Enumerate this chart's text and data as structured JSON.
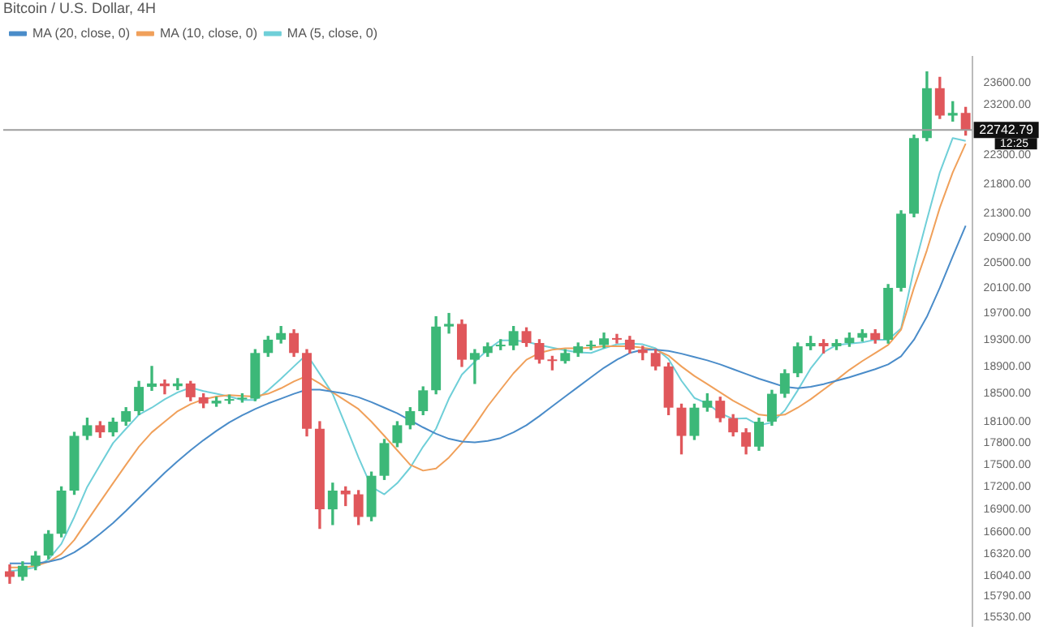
{
  "chart_data": {
    "type": "candlestick",
    "title": "Bitcoin / U.S. Dollar, 4H",
    "legend": "top left",
    "tick_labels": "y",
    "log": "y",
    "categories": [
      null,
      null,
      null,
      null,
      null,
      null,
      null,
      null,
      null,
      null,
      null,
      null,
      null,
      null,
      null,
      null,
      null,
      null,
      null,
      null,
      null,
      null,
      null,
      null,
      null,
      null,
      null,
      null,
      null,
      null,
      null,
      null,
      null,
      null,
      null,
      null,
      null,
      null,
      null,
      null,
      null,
      null,
      null,
      null,
      null,
      null,
      null,
      null,
      null,
      null,
      null,
      null,
      null,
      null,
      null,
      null,
      null,
      null,
      null,
      null,
      null,
      null,
      null,
      null,
      null,
      null,
      null,
      null,
      null,
      null,
      null,
      null,
      null,
      null,
      null
    ],
    "ohlc": [
      [
        16100,
        16180,
        15950,
        16030
      ],
      [
        16030,
        16220,
        15990,
        16170
      ],
      [
        16170,
        16350,
        16120,
        16300
      ],
      [
        16300,
        16620,
        16260,
        16580
      ],
      [
        16580,
        17200,
        16540,
        17150
      ],
      [
        17150,
        17950,
        17100,
        17900
      ],
      [
        17900,
        18150,
        17850,
        18050
      ],
      [
        18050,
        18100,
        17880,
        17950
      ],
      [
        17950,
        18150,
        17900,
        18100
      ],
      [
        18100,
        18300,
        18050,
        18250
      ],
      [
        18250,
        18680,
        18200,
        18600
      ],
      [
        18600,
        18900,
        18550,
        18650
      ],
      [
        18650,
        18700,
        18500,
        18610
      ],
      [
        18610,
        18720,
        18560,
        18650
      ],
      [
        18650,
        18680,
        18400,
        18450
      ],
      [
        18450,
        18500,
        18300,
        18360
      ],
      [
        18360,
        18450,
        18320,
        18400
      ],
      [
        18400,
        18480,
        18360,
        18420
      ],
      [
        18420,
        18500,
        18380,
        18430
      ],
      [
        18430,
        19150,
        18400,
        19100
      ],
      [
        19100,
        19350,
        19050,
        19300
      ],
      [
        19300,
        19500,
        19250,
        19400
      ],
      [
        19400,
        19450,
        19050,
        19100
      ],
      [
        19100,
        19150,
        17900,
        18000
      ],
      [
        18000,
        18100,
        16650,
        16900
      ],
      [
        16900,
        17250,
        16700,
        17150
      ],
      [
        17150,
        17200,
        16950,
        17100
      ],
      [
        17100,
        17150,
        16700,
        16800
      ],
      [
        16800,
        17400,
        16750,
        17350
      ],
      [
        17350,
        17850,
        17300,
        17800
      ],
      [
        17800,
        18100,
        17750,
        18050
      ],
      [
        18050,
        18300,
        18000,
        18250
      ],
      [
        18250,
        18600,
        18200,
        18550
      ],
      [
        18550,
        19650,
        18500,
        19500
      ],
      [
        19500,
        19700,
        19400,
        19540
      ],
      [
        19540,
        19600,
        18900,
        19000
      ],
      [
        19000,
        19150,
        18650,
        19100
      ],
      [
        19100,
        19250,
        19050,
        19200
      ],
      [
        19200,
        19300,
        19150,
        19210
      ],
      [
        19210,
        19500,
        19150,
        19430
      ],
      [
        19430,
        19480,
        19200,
        19250
      ],
      [
        19250,
        19300,
        18950,
        19000
      ],
      [
        19000,
        19050,
        18850,
        18980
      ],
      [
        18980,
        19150,
        18950,
        19100
      ],
      [
        19100,
        19250,
        19050,
        19200
      ],
      [
        19200,
        19280,
        19150,
        19220
      ],
      [
        19220,
        19400,
        19180,
        19320
      ],
      [
        19320,
        19380,
        19250,
        19300
      ],
      [
        19300,
        19350,
        19100,
        19150
      ],
      [
        19150,
        19200,
        19000,
        19100
      ],
      [
        19100,
        19150,
        18850,
        18900
      ],
      [
        18900,
        18950,
        18200,
        18300
      ],
      [
        18300,
        18350,
        17650,
        17900
      ],
      [
        17900,
        18350,
        17850,
        18300
      ],
      [
        18300,
        18500,
        18250,
        18400
      ],
      [
        18400,
        18450,
        18100,
        18150
      ],
      [
        18150,
        18200,
        17900,
        17950
      ],
      [
        17950,
        18000,
        17650,
        17750
      ],
      [
        17750,
        18150,
        17700,
        18100
      ],
      [
        18100,
        18550,
        18050,
        18500
      ],
      [
        18500,
        18850,
        18450,
        18800
      ],
      [
        18800,
        19250,
        18750,
        19200
      ],
      [
        19200,
        19350,
        19150,
        19250
      ],
      [
        19250,
        19300,
        19100,
        19200
      ],
      [
        19200,
        19300,
        19150,
        19250
      ],
      [
        19250,
        19400,
        19200,
        19330
      ],
      [
        19330,
        19450,
        19280,
        19400
      ],
      [
        19400,
        19450,
        19250,
        19300
      ],
      [
        19300,
        20150,
        19250,
        20100
      ],
      [
        20100,
        21350,
        20050,
        21300
      ],
      [
        21300,
        22650,
        21250,
        22600
      ],
      [
        22600,
        23800,
        22550,
        23500
      ],
      [
        23500,
        23700,
        22950,
        23000
      ],
      [
        23000,
        23250,
        22900,
        23050
      ],
      [
        23050,
        23150,
        22650,
        22743
      ]
    ],
    "series": [
      {
        "type": "line",
        "name": "MA (20, close, 0)",
        "color": "#4a8cc9",
        "values": [
          16200,
          16200,
          16200,
          16220,
          16260,
          16340,
          16450,
          16580,
          16720,
          16880,
          17050,
          17220,
          17390,
          17550,
          17700,
          17840,
          17970,
          18090,
          18190,
          18280,
          18360,
          18430,
          18500,
          18560,
          18560,
          18530,
          18500,
          18450,
          18380,
          18300,
          18220,
          18120,
          18020,
          17930,
          17860,
          17820,
          17810,
          17830,
          17870,
          17950,
          18050,
          18180,
          18320,
          18460,
          18600,
          18740,
          18880,
          19000,
          19100,
          19150,
          19150,
          19130,
          19090,
          19040,
          18990,
          18930,
          18860,
          18790,
          18720,
          18660,
          18600,
          18580,
          18600,
          18640,
          18690,
          18740,
          18800,
          18860,
          18930,
          19050,
          19300,
          19650,
          20100,
          20600,
          21100
        ]
      },
      {
        "type": "line",
        "name": "MA (10, close, 0)",
        "color": "#f0a05a",
        "values": [
          16150,
          16150,
          16170,
          16220,
          16320,
          16500,
          16750,
          17000,
          17250,
          17500,
          17750,
          17950,
          18100,
          18250,
          18350,
          18420,
          18460,
          18480,
          18470,
          18460,
          18500,
          18580,
          18680,
          18760,
          18650,
          18520,
          18400,
          18280,
          18100,
          17900,
          17700,
          17500,
          17420,
          17450,
          17600,
          17800,
          18050,
          18320,
          18560,
          18800,
          19000,
          19100,
          19150,
          19170,
          19170,
          19180,
          19200,
          19200,
          19200,
          19180,
          19150,
          19060,
          18900,
          18760,
          18640,
          18520,
          18400,
          18300,
          18200,
          18180,
          18200,
          18300,
          18420,
          18560,
          18700,
          18850,
          18980,
          19100,
          19220,
          19450,
          20100,
          20700,
          21400,
          22000,
          22500
        ]
      },
      {
        "type": "line",
        "name": "MA (5, close, 0)",
        "color": "#6fcfd8",
        "values": [
          16100,
          16120,
          16150,
          16250,
          16450,
          16800,
          17200,
          17500,
          17800,
          18000,
          18200,
          18300,
          18420,
          18520,
          18590,
          18540,
          18500,
          18460,
          18410,
          18410,
          18550,
          18720,
          18900,
          19080,
          18790,
          18500,
          18050,
          17600,
          17200,
          17100,
          17250,
          17460,
          17750,
          18000,
          18430,
          18780,
          18970,
          19150,
          19290,
          19290,
          19270,
          19220,
          19180,
          19140,
          19110,
          19100,
          19170,
          19230,
          19240,
          19230,
          19170,
          19010,
          18690,
          18440,
          18360,
          18220,
          18140,
          18150,
          18050,
          18090,
          18260,
          18550,
          18870,
          19110,
          19220,
          19240,
          19260,
          19300,
          19300,
          19470,
          20400,
          21200,
          22000,
          22600,
          22550
        ]
      }
    ],
    "ylim": [
      15425,
      24090
    ],
    "yticks": [
      {
        "value": 15530,
        "label": "15530.00"
      },
      {
        "value": 15790,
        "label": "15790.00"
      },
      {
        "value": 16040,
        "label": "16040.00"
      },
      {
        "value": 16320,
        "label": "16320.00"
      },
      {
        "value": 16600,
        "label": "16600.00"
      },
      {
        "value": 16900,
        "label": "16900.00"
      },
      {
        "value": 17200,
        "label": "17200.00"
      },
      {
        "value": 17500,
        "label": "17500.00"
      },
      {
        "value": 17800,
        "label": "17800.00"
      },
      {
        "value": 18100,
        "label": "18100.00"
      },
      {
        "value": 18500,
        "label": "18500.00"
      },
      {
        "value": 18900,
        "label": "18900.00"
      },
      {
        "value": 19300,
        "label": "19300.00"
      },
      {
        "value": 19700,
        "label": "19700.00"
      },
      {
        "value": 20100,
        "label": "20100.00"
      },
      {
        "value": 20500,
        "label": "20500.00"
      },
      {
        "value": 20900,
        "label": "20900.00"
      },
      {
        "value": 21300,
        "label": "21300.00"
      },
      {
        "value": 21800,
        "label": "21800.00"
      },
      {
        "value": 22300,
        "label": "22300.00"
      },
      {
        "value": 23200,
        "label": "23200.00"
      },
      {
        "value": 23600,
        "label": "23600.00"
      }
    ],
    "ref_lines": [
      {
        "axis": "y",
        "value": 22742.79,
        "label": "22742.79",
        "color": "#9e9e9e"
      }
    ],
    "annotations": [
      "12:25"
    ]
  }
}
